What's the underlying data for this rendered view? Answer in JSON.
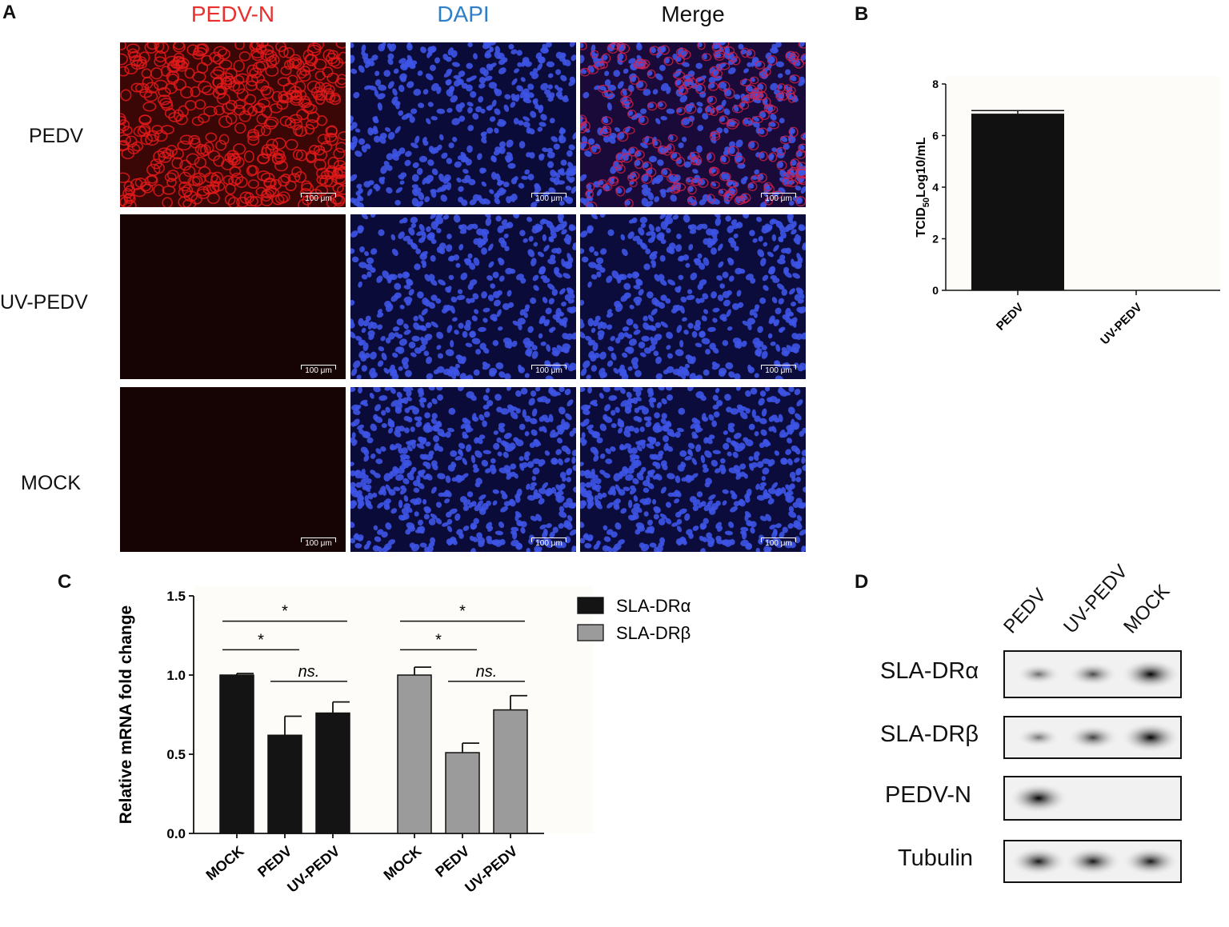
{
  "panels": {
    "a": "A",
    "b": "B",
    "c": "C",
    "d": "D"
  },
  "panel_a": {
    "columns": [
      {
        "label": "PEDV-N",
        "color": "#e8312e"
      },
      {
        "label": "DAPI",
        "color": "#2e7ec9"
      },
      {
        "label": "Merge",
        "color": "#111111"
      }
    ],
    "rows": [
      "PEDV",
      "UV-PEDV",
      "MOCK"
    ],
    "scale_bar": "100 μm"
  },
  "chart_data": [
    {
      "type": "bar",
      "panel": "B",
      "categories": [
        "PEDV",
        "UV-PEDV"
      ],
      "values": [
        6.85,
        0
      ],
      "errors": [
        0.12,
        0
      ],
      "ylabel_main": "TCID",
      "ylabel_sub": "50",
      "ylabel_rest": "Log10/mL",
      "ylim": [
        0,
        8
      ],
      "yticks": [
        "0",
        "2",
        "4",
        "6",
        "8"
      ],
      "bar_color": "#111111"
    },
    {
      "type": "bar",
      "panel": "C",
      "ylabel": "Relative  mRNA fold change",
      "ylim": [
        0,
        1.5
      ],
      "yticks": [
        "0.0",
        "0.5",
        "1.0",
        "1.5"
      ],
      "series": [
        {
          "name": "SLA-DRα",
          "color": "#141414",
          "categories": [
            "MOCK",
            "PEDV",
            "UV-PEDV"
          ],
          "values": [
            1.0,
            0.62,
            0.76
          ],
          "errors": [
            0.01,
            0.12,
            0.07
          ]
        },
        {
          "name": "SLA-DRβ",
          "color": "#9b9b9b",
          "categories": [
            "MOCK",
            "PEDV",
            "UV-PEDV"
          ],
          "values": [
            1.0,
            0.51,
            0.78
          ],
          "errors": [
            0.05,
            0.06,
            0.09
          ]
        }
      ],
      "significance": [
        {
          "group": 0,
          "from": 0,
          "to": 2,
          "label": "*",
          "level": 1.34
        },
        {
          "group": 0,
          "from": 0,
          "to": 1,
          "label": "*",
          "level": 1.16
        },
        {
          "group": 0,
          "from": 1,
          "to": 2,
          "label": "ns.",
          "level": 0.96
        },
        {
          "group": 1,
          "from": 0,
          "to": 2,
          "label": "*",
          "level": 1.34
        },
        {
          "group": 1,
          "from": 0,
          "to": 1,
          "label": "*",
          "level": 1.16
        },
        {
          "group": 1,
          "from": 1,
          "to": 2,
          "label": "ns.",
          "level": 0.96
        }
      ]
    }
  ],
  "panel_d": {
    "lanes": [
      "PEDV",
      "UV-PEDV",
      "MOCK"
    ],
    "blots": [
      {
        "label": "SLA-DRα",
        "intensities": [
          0.45,
          0.65,
          1.0
        ]
      },
      {
        "label": "SLA-DRβ",
        "intensities": [
          0.4,
          0.7,
          1.0
        ]
      },
      {
        "label": "PEDV-N",
        "intensities": [
          1.0,
          0.0,
          0.0
        ]
      },
      {
        "label": "Tubulin",
        "intensities": [
          0.9,
          0.9,
          0.9
        ]
      }
    ]
  }
}
